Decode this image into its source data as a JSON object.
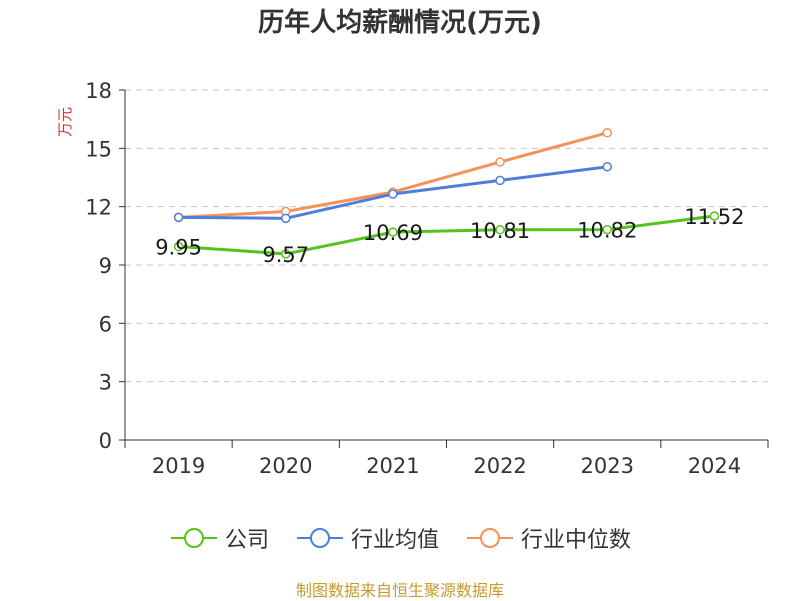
{
  "page": {
    "source": "制图数据来自恒生聚源数据库"
  },
  "chart_data": {
    "type": "line",
    "title": "历年人均薪酬情况(万元)",
    "xlabel": "",
    "ylabel": "万元",
    "categories": [
      "2019",
      "2020",
      "2021",
      "2022",
      "2023",
      "2024"
    ],
    "ylim": [
      0,
      18
    ],
    "yticks": [
      0,
      3,
      6,
      9,
      12,
      15,
      18
    ],
    "grid": true,
    "legend_position": "bottom",
    "series": [
      {
        "name": "公司",
        "color": "#52c41a",
        "values": [
          9.95,
          9.57,
          10.69,
          10.81,
          10.82,
          11.52
        ],
        "show_labels": true
      },
      {
        "name": "行业均值",
        "color": "#4e7fd8",
        "values": [
          11.45,
          11.4,
          12.65,
          13.35,
          14.05,
          null
        ],
        "show_labels": false
      },
      {
        "name": "行业中位数",
        "color": "#f5915a",
        "values": [
          11.45,
          11.75,
          12.75,
          14.3,
          15.8,
          null
        ],
        "show_labels": false
      }
    ],
    "data_labels": [
      "9.95",
      "9.57",
      "10.69",
      "10.81",
      "10.82",
      "11.52"
    ]
  }
}
